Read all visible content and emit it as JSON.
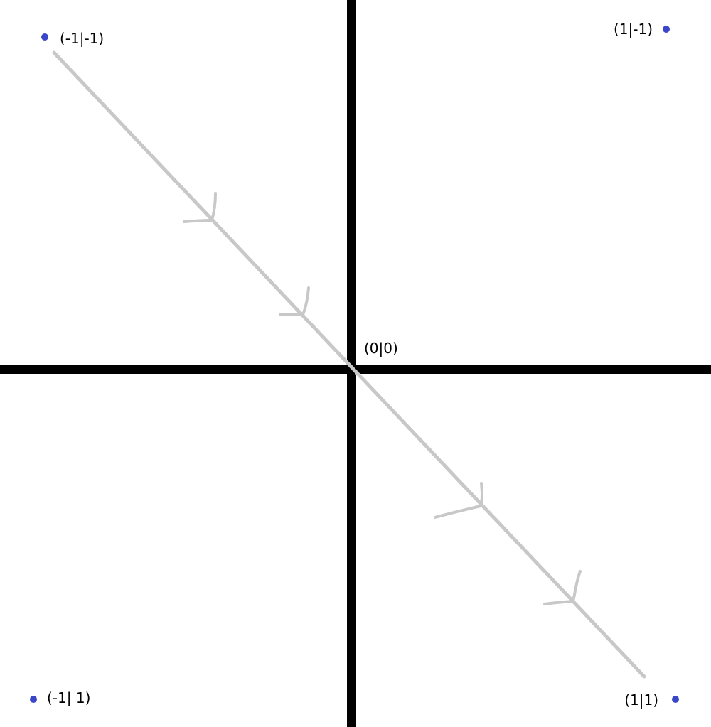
{
  "colors": {
    "background": "#ffffff",
    "axes": "#000000",
    "path": "#c8c8c8",
    "points": "#3b46c8"
  },
  "origin": {
    "label": "(0|0)"
  },
  "points": [
    {
      "id": "top-left",
      "label": "(-1|-1)"
    },
    {
      "id": "top-right",
      "label": "(1|-1)"
    },
    {
      "id": "bottom-left",
      "label": "(-1| 1)"
    },
    {
      "id": "bottom-right",
      "label": "(1|1)"
    }
  ],
  "path": {
    "direction": "top-left to bottom-right",
    "arrow_count": 4
  }
}
